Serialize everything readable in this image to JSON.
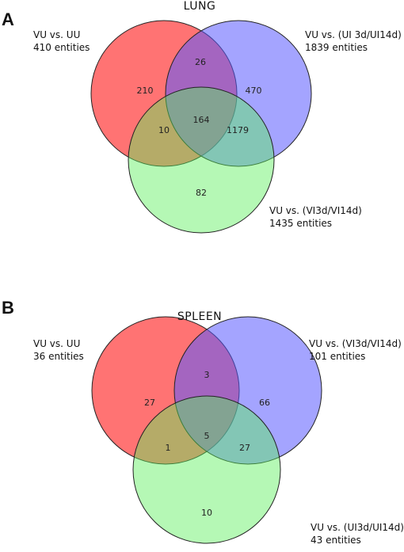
{
  "panels": [
    {
      "letter": "A",
      "title": "LUNG",
      "sets": [
        {
          "label": "VU vs. UU",
          "entities": "410 entities",
          "color": "#ff5a5a"
        },
        {
          "label": "VU vs. (UI 3d/UI14d)",
          "entities": "1839 entities",
          "color": "#5a5aff"
        },
        {
          "label": "VU vs. (VI3d/VI14d)",
          "entities": "1435 entities",
          "color": "#5af05a"
        }
      ],
      "regions": {
        "red_only": "210",
        "red_blue": "26",
        "blue_only": "470",
        "red_green": "10",
        "all_three": "164",
        "blue_green": "1179",
        "green_only": "82"
      }
    },
    {
      "letter": "B",
      "title": "SPLEEN",
      "sets": [
        {
          "label": "VU vs. UU",
          "entities": "36 entities",
          "color": "#ff5a5a"
        },
        {
          "label": "VU vs. (VI3d/VI14d)",
          "entities": "101 entities",
          "color": "#5a5aff"
        },
        {
          "label": "VU vs. (UI3d/UI14d)",
          "entities": "43 entities",
          "color": "#5af05a"
        }
      ],
      "regions": {
        "red_only": "27",
        "red_blue": "3",
        "blue_only": "66",
        "red_green": "1",
        "all_three": "5",
        "blue_green": "27",
        "green_only": "10"
      }
    }
  ]
}
